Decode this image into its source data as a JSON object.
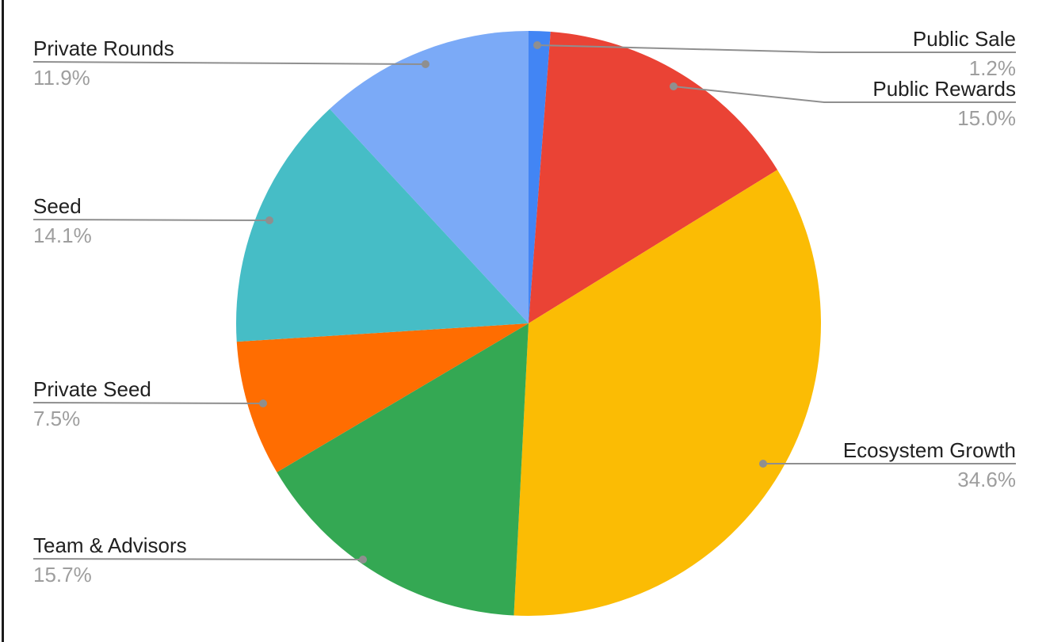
{
  "page": {
    "background_color": "#ffffff",
    "frame_border_color": "#1b1b1b"
  },
  "chart_data": {
    "type": "pie",
    "title": "",
    "legend_position": "none-callout-labels",
    "start_angle_deg": 0,
    "direction": "clockwise",
    "label_text_color": "#212121",
    "percent_text_color": "#9e9e9e",
    "leader_line_color": "#8f8f8f",
    "slices": [
      {
        "label": "Public Sale",
        "value_pct": 1.2,
        "display": "1.2%",
        "color": "#4285F4"
      },
      {
        "label": "Public Rewards",
        "value_pct": 15.0,
        "display": "15.0%",
        "color": "#EA4335"
      },
      {
        "label": "Ecosystem Growth",
        "value_pct": 34.6,
        "display": "34.6%",
        "color": "#FBBC04"
      },
      {
        "label": "Team & Advisors",
        "value_pct": 15.7,
        "display": "15.7%",
        "color": "#34A853"
      },
      {
        "label": "Private Seed",
        "value_pct": 7.5,
        "display": "7.5%",
        "color": "#FF6D01"
      },
      {
        "label": "Seed",
        "value_pct": 14.1,
        "display": "14.1%",
        "color": "#46BDC6"
      },
      {
        "label": "Private Rounds",
        "value_pct": 11.9,
        "display": "11.9%",
        "color": "#7BAAF7"
      }
    ]
  }
}
